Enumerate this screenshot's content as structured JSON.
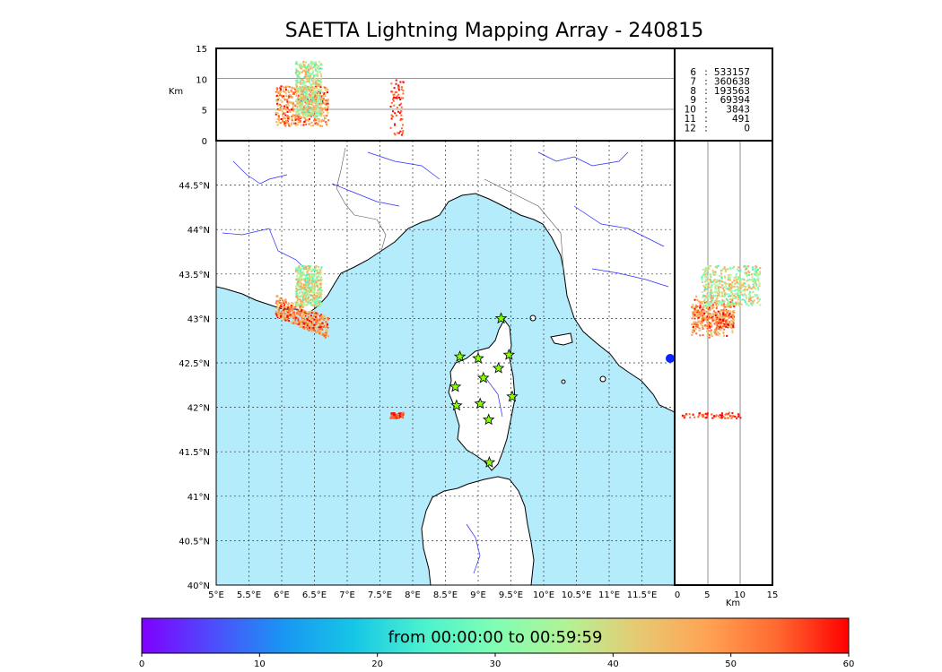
{
  "title": "SAETTA Lightning Mapping Array - 240815",
  "axes": {
    "lon_ticks": [
      "5°E",
      "5.5°E",
      "6°E",
      "6.5°E",
      "7°E",
      "7.5°E",
      "8°E",
      "8.5°E",
      "9°E",
      "9.5°E",
      "10°E",
      "10.5°E",
      "11°E",
      "11.5°E"
    ],
    "lat_ticks": [
      "40°N",
      "40.5°N",
      "41°N",
      "41.5°N",
      "42°N",
      "42.5°N",
      "43°N",
      "43.5°N",
      "44°N",
      "44.5°N"
    ],
    "alt_unit": "Km",
    "alt_ticks": [
      "0",
      "5",
      "10",
      "15"
    ],
    "alt_right_ticks": [
      "0",
      "5",
      "10",
      "15"
    ]
  },
  "station_counts": [
    {
      "label": "6",
      "sep": ":",
      "value": "533157",
      "color": "#000000"
    },
    {
      "label": "7",
      "sep": ":",
      "value": "360638",
      "color": "#ff0000"
    },
    {
      "label": "8",
      "sep": ":",
      "value": "193563",
      "color": "#000000"
    },
    {
      "label": "9",
      "sep": ":",
      "value": "69394",
      "color": "#000000"
    },
    {
      "label": "10",
      "sep": ":",
      "value": "3843",
      "color": "#000000"
    },
    {
      "label": "11",
      "sep": ":",
      "value": "491",
      "color": "#000000"
    },
    {
      "label": "12",
      "sep": ":",
      "value": "0",
      "color": "#000000"
    }
  ],
  "stations": [
    {
      "lon": 9.35,
      "lat": 43.0
    },
    {
      "lon": 8.72,
      "lat": 42.57
    },
    {
      "lon": 9.0,
      "lat": 42.55
    },
    {
      "lon": 9.47,
      "lat": 42.59
    },
    {
      "lon": 9.31,
      "lat": 42.44
    },
    {
      "lon": 9.08,
      "lat": 42.33
    },
    {
      "lon": 8.65,
      "lat": 42.23
    },
    {
      "lon": 9.52,
      "lat": 42.12
    },
    {
      "lon": 8.67,
      "lat": 42.02
    },
    {
      "lon": 9.03,
      "lat": 42.04
    },
    {
      "lon": 9.16,
      "lat": 41.86
    },
    {
      "lon": 9.17,
      "lat": 41.38
    }
  ],
  "lightning_clusters": [
    {
      "name": "provence",
      "lon": [
        5.9,
        6.7
      ],
      "lat": [
        42.85,
        43.2
      ],
      "alt": [
        2.5,
        9
      ],
      "time_min": [
        40,
        60
      ]
    },
    {
      "name": "provence-early",
      "lon": [
        6.2,
        6.6
      ],
      "lat": [
        43.15,
        43.6
      ],
      "alt": [
        4,
        13
      ],
      "time_min": [
        25,
        50
      ]
    },
    {
      "name": "ligurian-sea",
      "lon": [
        7.65,
        7.85
      ],
      "lat": [
        41.88,
        41.95
      ],
      "alt": [
        1,
        10
      ],
      "time_min": [
        52,
        60
      ]
    }
  ],
  "colorbar": {
    "title": "from 00:00:00 to 00:59:59",
    "ticks": [
      "0",
      "10",
      "20",
      "30",
      "40",
      "50",
      "60"
    ],
    "range": [
      0,
      60
    ],
    "colors": [
      "#7f00ff",
      "#4e4cfc",
      "#1996f3",
      "#16c6e6",
      "#4cf2ce",
      "#80feb3",
      "#b2f396",
      "#e6ca73",
      "#ffa353",
      "#ff6830",
      "#ff0000"
    ]
  },
  "map_colors": {
    "sea": "#b5ecfc",
    "land": "#ffffff",
    "river": "#2a2aff",
    "border": "#555555",
    "grid": "#333333",
    "station_fill": "#88ff00"
  },
  "map_extent": {
    "lon": [
      5,
      12
    ],
    "lat": [
      40,
      45
    ]
  }
}
